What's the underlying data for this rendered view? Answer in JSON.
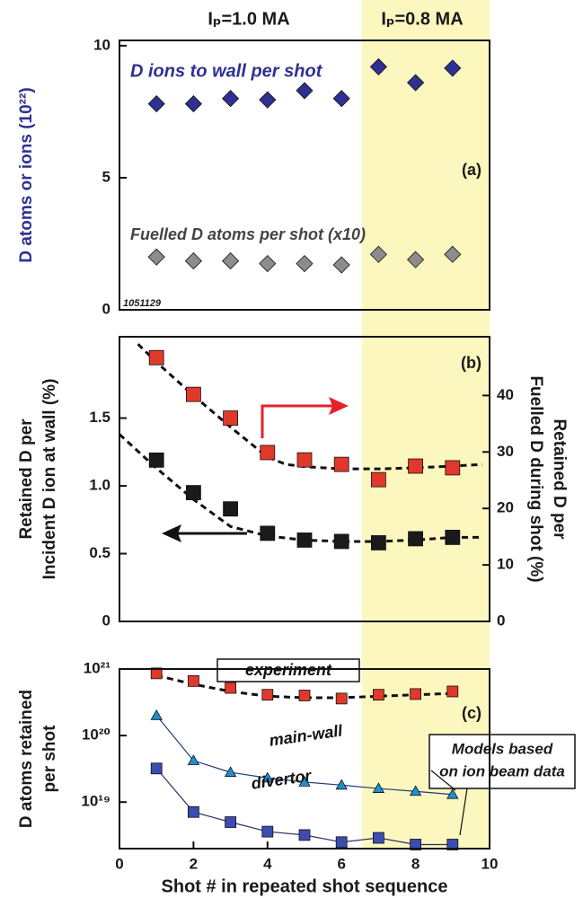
{
  "header": {
    "left": "Iₚ=1.0 MA",
    "right": "Iₚ=0.8 MA"
  },
  "highlight": {
    "x": [
      6.55,
      10
    ],
    "color": "#fcf7bf"
  },
  "chart_data": [
    {
      "type": "scatter",
      "panel_label": "(a)",
      "ylabel": [
        "D atoms  or ions (10²²)"
      ],
      "annotation": "1051129",
      "xlim": [
        0,
        10
      ],
      "ylim": [
        0,
        10.2
      ],
      "yticks": [
        0,
        5,
        10
      ],
      "x": [
        1,
        2,
        3,
        4,
        5,
        6,
        7,
        8,
        9
      ],
      "series": [
        {
          "name": "D ions to wall per shot",
          "color": "#2e3192",
          "marker": "diamond",
          "values": [
            7.8,
            7.8,
            8.0,
            7.95,
            8.3,
            8.0,
            9.2,
            8.6,
            9.15
          ]
        },
        {
          "name": "Fuelled D atoms per shot (x10)",
          "color": "#8c8c8c",
          "marker": "diamond",
          "values": [
            2.0,
            1.85,
            1.85,
            1.75,
            1.75,
            1.7,
            2.1,
            1.9,
            2.1
          ]
        }
      ]
    },
    {
      "type": "scatter",
      "panel_label": "(b)",
      "ylabel": [
        "Retained D per",
        "Incident D ion at wall (%)"
      ],
      "y2label": [
        "Retained D per",
        "Fuelled D during shot (%)"
      ],
      "xlim": [
        0,
        10
      ],
      "ylim": [
        0,
        2.1
      ],
      "yticks": [
        0,
        0.5,
        {
          "value": 1,
          "label": "1.0"
        },
        1.5
      ],
      "y2lim": [
        0,
        50.4
      ],
      "y2ticks": [
        0,
        10,
        20,
        30,
        40
      ],
      "x": [
        1,
        2,
        3,
        4,
        5,
        6,
        7,
        8,
        9
      ],
      "series": [
        {
          "color": "#e0392b",
          "marker": "square",
          "axis": "y2",
          "values": [
            46.7,
            40.2,
            36,
            29.9,
            28.6,
            27.8,
            25.1,
            27.5,
            27.2
          ],
          "fit": {
            "x": [
              0.5,
              1,
              2,
              3,
              4,
              4.5,
              5,
              6,
              7,
              8,
              9,
              9.8
            ],
            "values": [
              49.1,
              45.9,
              40,
              34.4,
              29.1,
              27.8,
              27.4,
              27,
              27,
              27.2,
              27.5,
              27.8
            ]
          }
        },
        {
          "color": "#1a1a1a",
          "marker": "square",
          "values": [
            1.19,
            0.95,
            0.83,
            0.65,
            0.6,
            0.59,
            0.58,
            0.61,
            0.62
          ],
          "fit": {
            "x": [
              0,
              1,
              2,
              3,
              4,
              5,
              6,
              7,
              8,
              9,
              9.8
            ],
            "values": [
              1.38,
              1.13,
              0.9,
              0.7,
              0.63,
              0.6,
              0.59,
              0.59,
              0.6,
              0.62,
              0.62
            ]
          }
        }
      ]
    },
    {
      "type": "scatter",
      "log_y": true,
      "panel_label": "(c)",
      "ylabel": [
        "D atoms retained",
        "per shot"
      ],
      "xlabel": "Shot # in repeated shot sequence",
      "note": [
        "Models based",
        "on ion beam data"
      ],
      "xlim": [
        0,
        10
      ],
      "xticks": [
        0,
        2,
        4,
        6,
        8,
        10
      ],
      "ylim": [
        2e+18,
        1e+21
      ],
      "yticks": [
        {
          "value": 1e+19,
          "label": "10¹⁹"
        },
        {
          "value": 1e+20,
          "label": "10²⁰"
        },
        {
          "value": 1e+21,
          "label": "10²¹"
        }
      ],
      "x": [
        1,
        2,
        3,
        4,
        5,
        6,
        7,
        8,
        9
      ],
      "series": [
        {
          "name": "experiment",
          "color": "#e0392b",
          "marker": "square",
          "values": [
            8.6e+20,
            6.6e+20,
            5.2e+20,
            4.1e+20,
            4e+20,
            3.6e+20,
            4.1e+20,
            4.2e+20,
            4.6e+20
          ],
          "fit": {
            "x": [
              1,
              2,
              3,
              4,
              5,
              6,
              7,
              8,
              9
            ],
            "values": [
              8e+20,
              5.9e+20,
              4.6e+20,
              3.9e+20,
              3.7e+20,
              3.7e+20,
              3.9e+20,
              4.1e+20,
              4.3e+20
            ]
          }
        },
        {
          "name": "main-wall",
          "color": "#1f8fd0",
          "marker": "triangle",
          "connect": true,
          "values": [
            2e+20,
            4.2e+19,
            2.8e+19,
            2.3e+19,
            2e+19,
            1.8e+19,
            1.6e+19,
            1.45e+19,
            1.3e+19
          ]
        },
        {
          "name": "divertor",
          "color": "#3b4db0",
          "marker": "square",
          "connect": true,
          "values": [
            3.2e+19,
            7.1e+18,
            5e+18,
            3.6e+18,
            3.2e+18,
            2.5e+18,
            2.9e+18,
            2.3e+18,
            2.3e+18
          ]
        }
      ]
    }
  ]
}
